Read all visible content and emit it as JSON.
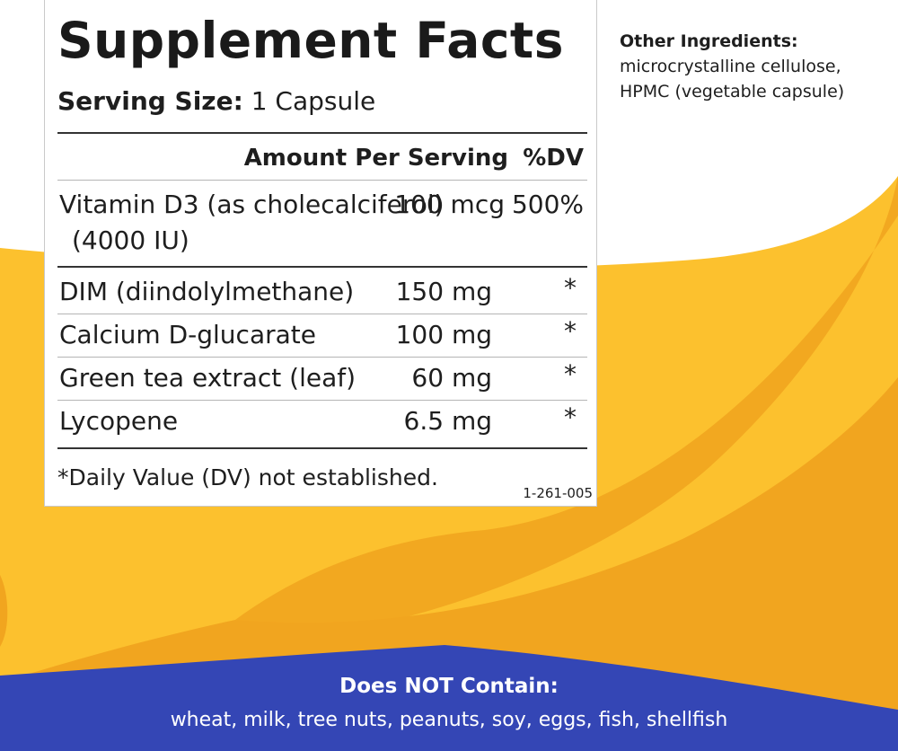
{
  "colors": {
    "yellow_light": "#FCC12E",
    "yellow_dark": "#F1A51F",
    "blue_band": "#3446B5",
    "text": "#1E1E1E"
  },
  "facts": {
    "title": "Supplement Facts",
    "serving_label": "Serving Size:",
    "serving_value": "1 Capsule",
    "header_amount": "Amount Per Serving",
    "header_dv": "%DV",
    "vitamin": {
      "name_line1": "Vitamin D3 (as cholecalciferol)",
      "name_line2": "(4000 IU)",
      "amount": "100 mcg",
      "dv": "500%"
    },
    "rows": [
      {
        "name": "DIM (diindolylmethane)",
        "amount": "150 mg",
        "dv": "*"
      },
      {
        "name": "Calcium D-glucarate",
        "amount": "100 mg",
        "dv": "*"
      },
      {
        "name": "Green tea extract (leaf)",
        "amount": "60 mg",
        "dv": "*"
      },
      {
        "name": "Lycopene",
        "amount": "6.5 mg",
        "dv": "*"
      }
    ],
    "footnote": "*Daily Value (DV) not established.",
    "code": "1-261-005"
  },
  "other_ingredients": {
    "heading": "Other Ingredients:",
    "line1": "microcrystalline cellulose,",
    "line2": "HPMC (vegetable capsule)"
  },
  "allergen": {
    "heading": "Does NOT Contain:",
    "list": "wheat, milk, tree nuts, peanuts, soy, eggs, fish, shellfish"
  }
}
